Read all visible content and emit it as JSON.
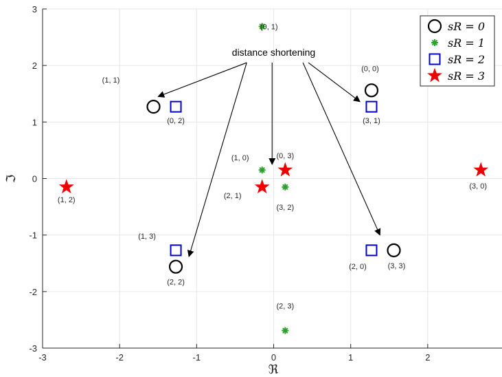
{
  "chart_data": {
    "type": "scatter",
    "xlabel": "ℜ",
    "ylabel": "ℑ",
    "xlim": [
      -3,
      3
    ],
    "ylim": [
      -3,
      3
    ],
    "xticks": [
      -3,
      -2,
      -1,
      0,
      1,
      2,
      3
    ],
    "yticks": [
      -3,
      -2,
      -1,
      0,
      1,
      2,
      3
    ],
    "grid": true,
    "legend_position": "top-right",
    "series": [
      {
        "name": "s_R = 0",
        "legend_label": "sR = 0",
        "marker": "circle",
        "color": "#000000",
        "points": [
          {
            "x": -1.56,
            "y": 1.27,
            "label": "(1, 1)"
          },
          {
            "x": 1.27,
            "y": 1.56,
            "label": "(0, 0)"
          },
          {
            "x": -1.27,
            "y": -1.56,
            "label": "(2, 2)"
          },
          {
            "x": 1.56,
            "y": -1.27,
            "label": "(3, 3)"
          }
        ]
      },
      {
        "name": "s_R = 1",
        "legend_label": "sR = 1",
        "marker": "asterisk",
        "color": "#2ca02c",
        "points": [
          {
            "x": -0.15,
            "y": 2.69,
            "label": "(0, 1)"
          },
          {
            "x": -0.15,
            "y": 0.15,
            "label": "(1, 0)"
          },
          {
            "x": 0.15,
            "y": -0.15,
            "label": "(3, 2)"
          },
          {
            "x": 0.15,
            "y": -2.69,
            "label": "(2, 3)"
          }
        ]
      },
      {
        "name": "s_R = 2",
        "legend_label": "sR = 2",
        "marker": "square",
        "color": "#0000cc",
        "points": [
          {
            "x": -1.27,
            "y": 1.27,
            "label": "(0, 2)"
          },
          {
            "x": 1.27,
            "y": 1.27,
            "label": "(3, 1)"
          },
          {
            "x": -1.27,
            "y": -1.27,
            "label": "(1, 3)"
          },
          {
            "x": 1.27,
            "y": -1.27,
            "label": "(2, 0)"
          }
        ]
      },
      {
        "name": "s_R = 3",
        "legend_label": "sR = 3",
        "marker": "star",
        "color": "#ee0000",
        "points": [
          {
            "x": -2.69,
            "y": -0.15,
            "label": "(1, 2)"
          },
          {
            "x": 0.15,
            "y": 0.15,
            "label": "(0, 3)"
          },
          {
            "x": -0.15,
            "y": -0.15,
            "label": "(2, 1)"
          },
          {
            "x": 2.69,
            "y": 0.15,
            "label": "(3, 0)"
          }
        ]
      }
    ],
    "annotation": {
      "text": "distance shortening",
      "anchor": [
        0.0,
        2.17
      ],
      "arrows": [
        {
          "from": [
            -0.35,
            2.05
          ],
          "to": [
            -1.5,
            1.45
          ]
        },
        {
          "from": [
            -0.35,
            2.05
          ],
          "to": [
            -1.1,
            -1.38
          ]
        },
        {
          "from": [
            -0.02,
            2.05
          ],
          "to": [
            -0.02,
            0.25
          ]
        },
        {
          "from": [
            0.45,
            2.05
          ],
          "to": [
            1.12,
            1.36
          ]
        },
        {
          "from": [
            0.38,
            2.05
          ],
          "to": [
            1.38,
            -1.0
          ]
        }
      ]
    }
  }
}
